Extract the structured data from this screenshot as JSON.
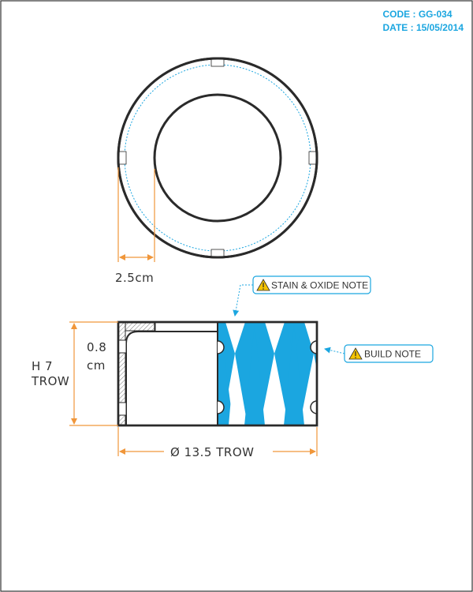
{
  "header": {
    "code": "CODE : GG-034",
    "date": "DATE : 15/05/2014"
  },
  "dimensions": {
    "wall_thickness": "2.5cm",
    "base_thickness_value": "0.8",
    "base_thickness_unit": "cm",
    "height_line1": "H 7",
    "height_line2": "TROW",
    "diameter": "Ø 13.5 TROW"
  },
  "notes": {
    "stain_oxide": "STAIN & OXIDE NOTE",
    "build": "BUILD NOTE"
  },
  "colors": {
    "outline": "#2a2a2a",
    "dimension": "#f0963a",
    "accent": "#1ba6e0",
    "warning": "#f5c400"
  },
  "icons": {
    "warning": "warning-triangle-icon"
  }
}
